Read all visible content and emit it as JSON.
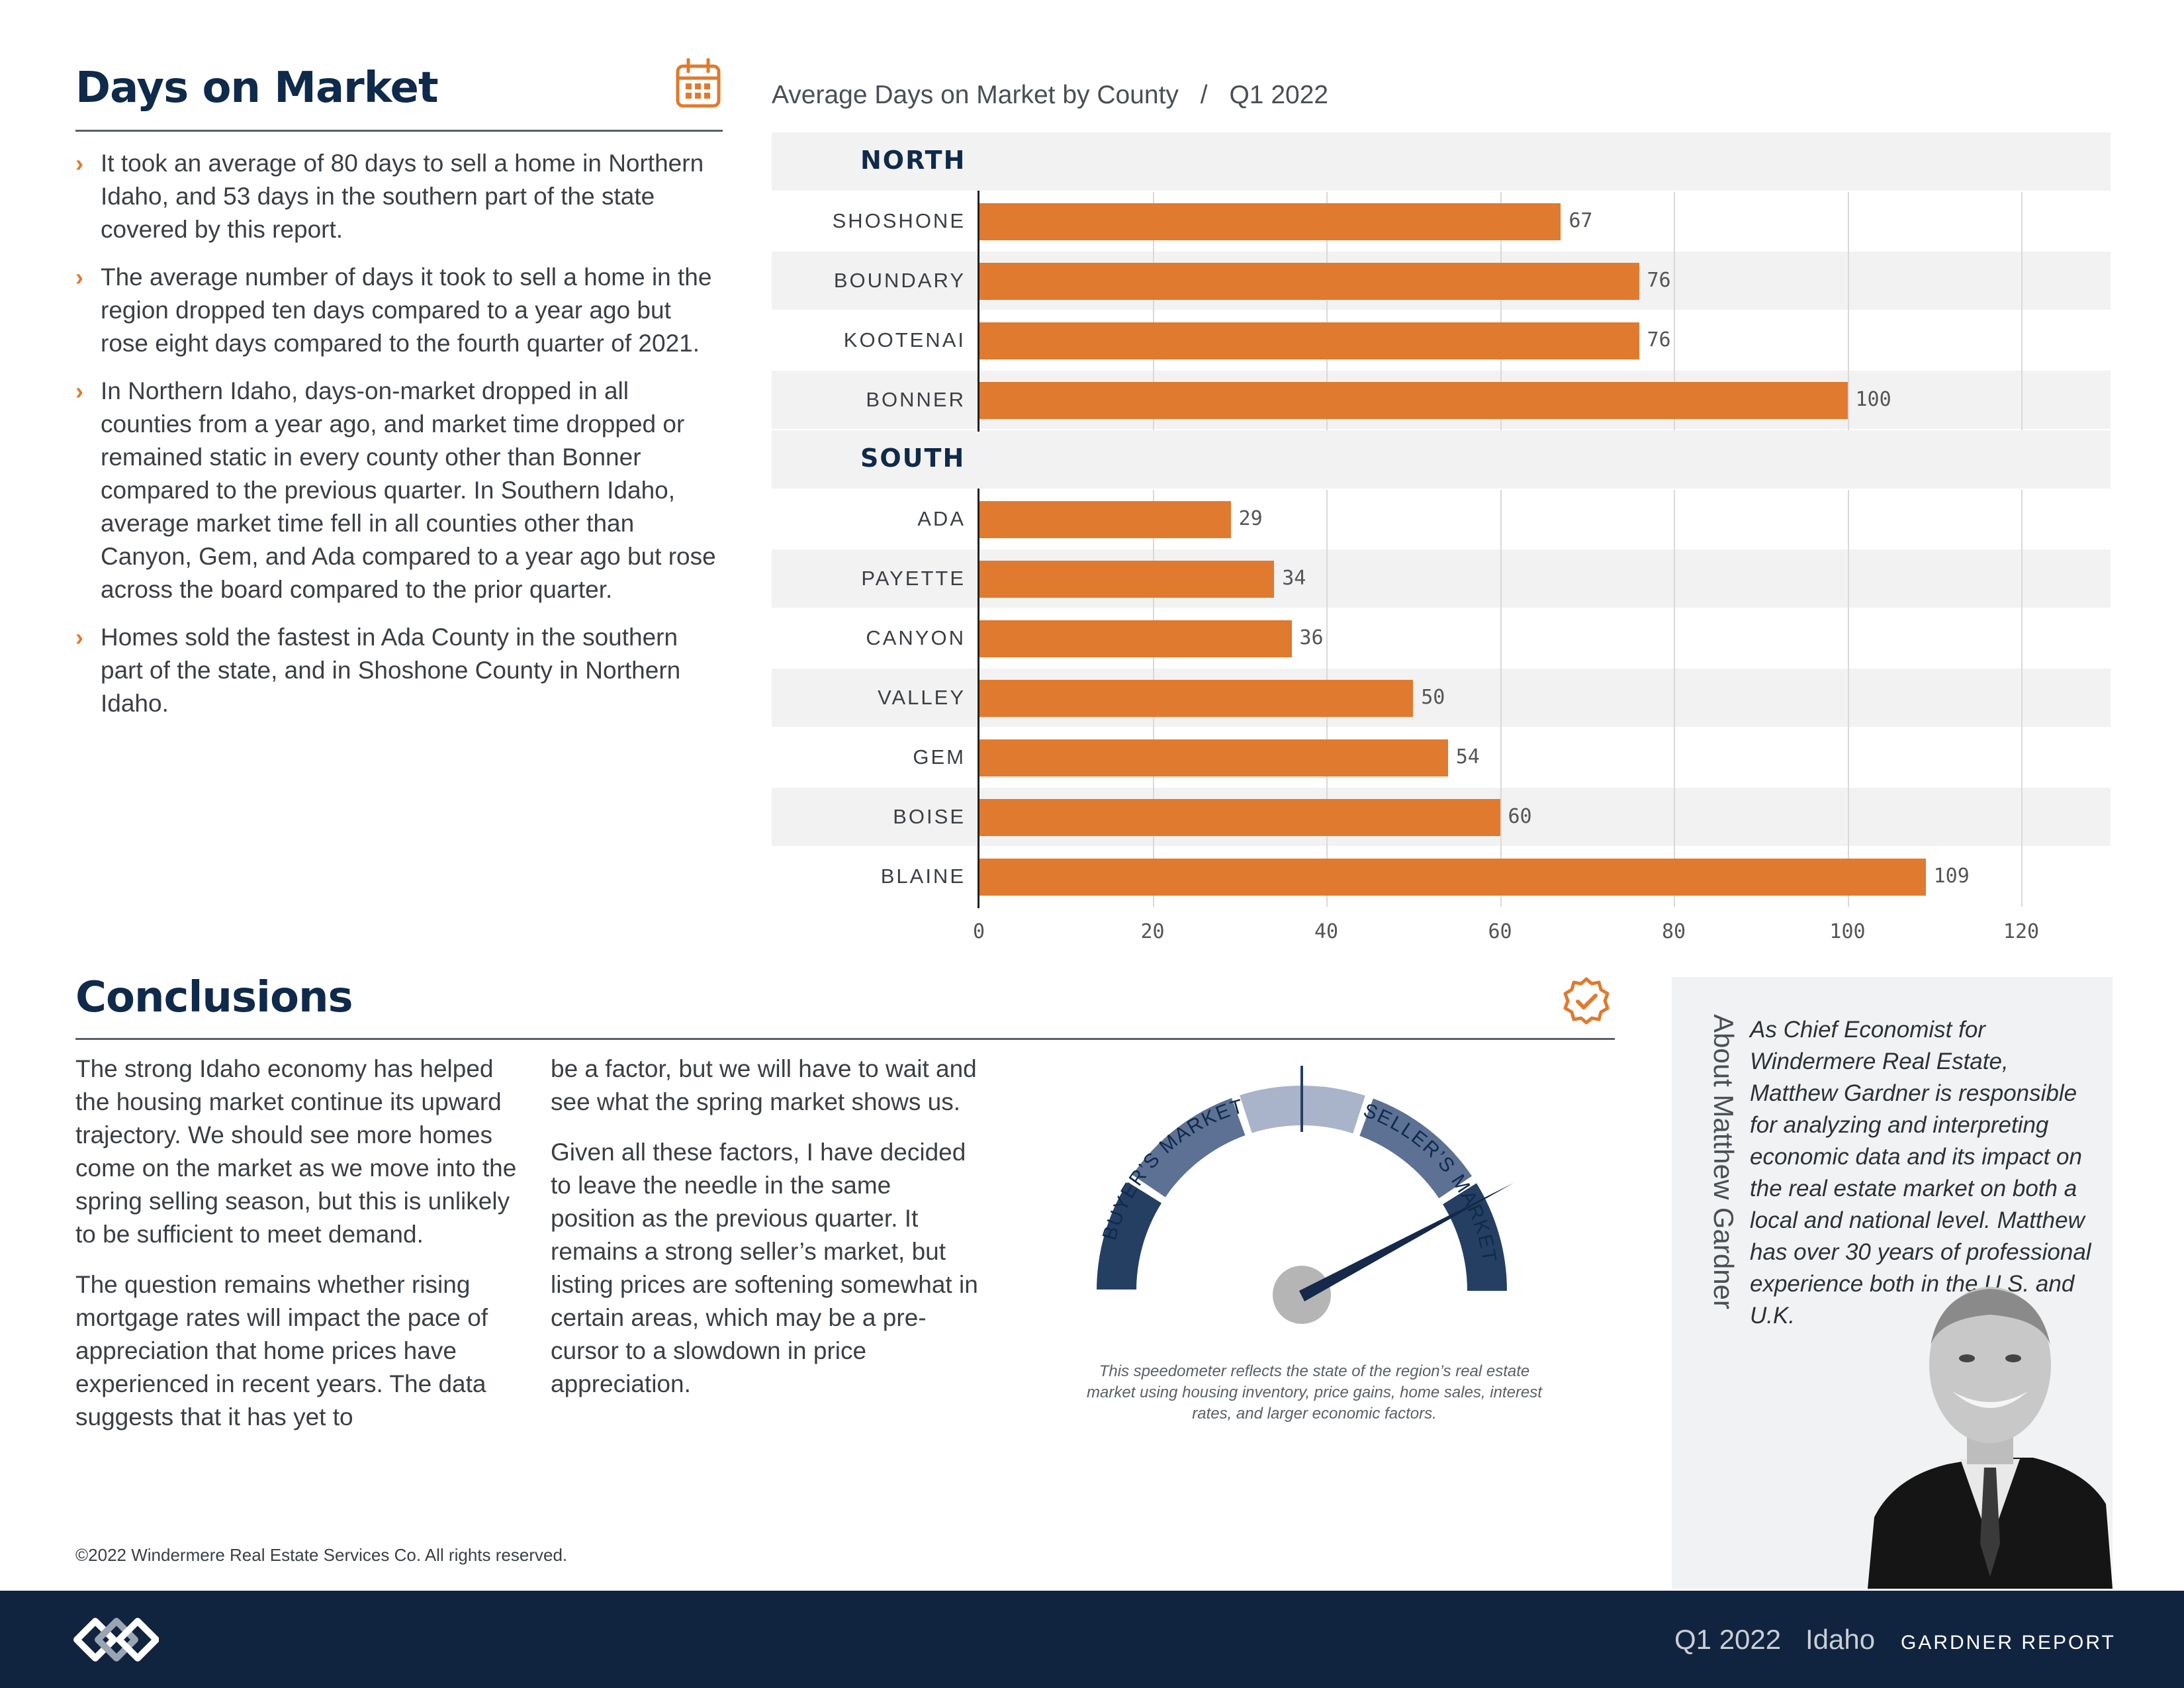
{
  "days_section": {
    "title": "Days on Market",
    "bullets": [
      "It took an average of 80 days to sell a home in Northern Idaho, and 53 days in the southern part of the state covered by this report.",
      "The average number of days it took to sell a home in the region dropped ten days compared to a year ago but rose eight days compared to the fourth quarter of 2021.",
      "In Northern Idaho, days-on-market dropped in all counties from a year ago, and market time dropped or remained static in every county other than Bonner compared to the previous quarter. In Southern Idaho, average market time fell in all counties other than Canyon, Gem, and Ada compared to a year ago but rose across the board compared to the prior quarter.",
      "Homes sold the fastest in Ada County in the southern part of the state, and in Shoshone County in Northern Idaho."
    ],
    "icon": "calendar-icon"
  },
  "chart": {
    "title": "Average Days on Market by County",
    "separator": "/",
    "period": "Q1 2022",
    "groups": [
      "NORTH",
      "SOUTH"
    ]
  },
  "chart_data": {
    "type": "bar",
    "orientation": "horizontal",
    "categories": [
      "SHOSHONE",
      "BOUNDARY",
      "KOOTENAI",
      "BONNER",
      "ADA",
      "PAYETTE",
      "CANYON",
      "VALLEY",
      "GEM",
      "BOISE",
      "BLAINE"
    ],
    "groups": [
      {
        "name": "NORTH",
        "categories": [
          "SHOSHONE",
          "BOUNDARY",
          "KOOTENAI",
          "BONNER"
        ],
        "values": [
          67,
          76,
          76,
          100
        ]
      },
      {
        "name": "SOUTH",
        "categories": [
          "ADA",
          "PAYETTE",
          "CANYON",
          "VALLEY",
          "GEM",
          "BOISE",
          "BLAINE"
        ],
        "values": [
          29,
          34,
          36,
          50,
          54,
          60,
          109
        ]
      }
    ],
    "values": [
      67,
      76,
      76,
      100,
      29,
      34,
      36,
      50,
      54,
      60,
      109
    ],
    "title": "Average Days on Market by County / Q1 2022",
    "xlabel": "",
    "ylabel": "",
    "xlim": [
      0,
      120
    ],
    "xticks": [
      0,
      20,
      40,
      60,
      80,
      100,
      120
    ],
    "grid": true,
    "bar_color": "#e07a2e"
  },
  "conclusions": {
    "title": "Conclusions",
    "icon": "badge-check-icon",
    "col1": [
      "The strong Idaho economy has helped the housing market continue its upward trajectory. We should see more homes come on the market as we move into the spring selling season, but this is unlikely to be sufficient to meet demand.",
      "The question remains whether rising mortgage rates will impact the pace of appreciation that home prices have experienced in recent years. The data suggests that it has yet to"
    ],
    "col2": [
      "be a factor, but we will have to wait and see what the spring market shows us.",
      "Given all these factors, I have decided to leave the needle in the same position as the previous quarter. It remains a strong seller’s market, but listing prices are softening somewhat in certain areas, which may be a pre-cursor to a slowdown in price appreciation."
    ]
  },
  "speedometer": {
    "buyer_label": "BUYER’S MARKET",
    "seller_label": "SELLER’S MARKET",
    "caption": "This speedometer reflects the state of the region’s real estate market using housing inventory, price gains, home sales, interest rates, and larger economic factors.",
    "needle_angle_deg": 63,
    "colors": [
      "#253f63",
      "#5c7194",
      "#a9b3c9",
      "#5c7194",
      "#253f63"
    ]
  },
  "about": {
    "title": "About Matthew Gardner",
    "text": "As Chief Economist for Windermere Real Estate, Matthew Gardner is responsible for analyzing and interpreting economic data and its impact on the real estate market on both a local and national level. Matthew has over 30 years of professional experience both in the U.S. and U.K."
  },
  "copyright": "©2022 Windermere Real Estate Services Co. All rights reserved.",
  "footer": {
    "quarter": "Q1 2022",
    "region": "Idaho",
    "report": "GARDNER REPORT",
    "logo": "windermere-logo"
  },
  "colors": {
    "navy": "#11243f",
    "orange": "#e07a2e",
    "heading": "#0f2a4a"
  }
}
